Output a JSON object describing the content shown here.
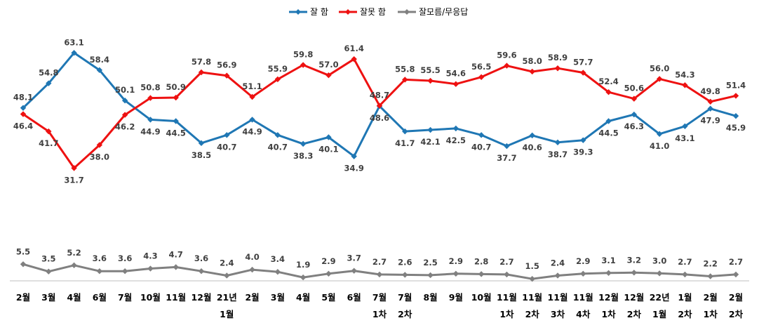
{
  "chart_data": {
    "type": "line",
    "categories": [
      [
        "2월"
      ],
      [
        "3월"
      ],
      [
        "4월"
      ],
      [
        "6월"
      ],
      [
        "7월"
      ],
      [
        "10월"
      ],
      [
        "11월"
      ],
      [
        "12월"
      ],
      [
        "21년",
        "1월"
      ],
      [
        "2월"
      ],
      [
        "3월"
      ],
      [
        "4월"
      ],
      [
        "5월"
      ],
      [
        "6월"
      ],
      [
        "7월",
        "1차"
      ],
      [
        "7월",
        "2차"
      ],
      [
        "8월"
      ],
      [
        "9월"
      ],
      [
        "10월"
      ],
      [
        "11월",
        "1차"
      ],
      [
        "11월",
        "2차"
      ],
      [
        "11월",
        "3차"
      ],
      [
        "11월",
        "4차"
      ],
      [
        "12월",
        "1차"
      ],
      [
        "12월",
        "2차"
      ],
      [
        "22년",
        "1월"
      ],
      [
        "1월",
        "2차"
      ],
      [
        "2월",
        "1차"
      ],
      [
        "2월",
        "2차"
      ]
    ],
    "series": [
      {
        "name": "잘 함",
        "color": "#1F77B4",
        "values": [
          48.1,
          54.8,
          63.1,
          58.4,
          50.1,
          44.9,
          44.5,
          38.5,
          40.7,
          44.9,
          40.7,
          38.3,
          40.1,
          34.9,
          48.6,
          41.7,
          42.1,
          42.5,
          40.7,
          37.7,
          40.6,
          38.7,
          39.3,
          44.5,
          46.3,
          41.0,
          43.1,
          47.9,
          45.9
        ]
      },
      {
        "name": "잘못 함",
        "color": "#EE1111",
        "values": [
          46.4,
          41.7,
          31.7,
          38.0,
          46.2,
          50.8,
          50.9,
          57.8,
          56.9,
          51.1,
          55.9,
          59.8,
          57.0,
          61.4,
          48.7,
          55.8,
          55.5,
          54.6,
          56.5,
          59.6,
          58.0,
          58.9,
          57.7,
          52.4,
          50.6,
          56.0,
          54.3,
          49.8,
          51.4
        ]
      },
      {
        "name": "잘모름/무응답",
        "color": "#808080",
        "values": [
          5.5,
          3.5,
          5.2,
          3.6,
          3.6,
          4.3,
          4.7,
          3.6,
          2.4,
          4.0,
          3.4,
          1.9,
          2.9,
          3.7,
          2.7,
          2.6,
          2.5,
          2.9,
          2.8,
          2.7,
          1.5,
          2.4,
          2.9,
          3.1,
          3.2,
          3.0,
          2.7,
          2.2,
          2.7
        ]
      }
    ],
    "legend_position": "top-center",
    "grid": false,
    "ylim": [
      0,
      70
    ]
  }
}
